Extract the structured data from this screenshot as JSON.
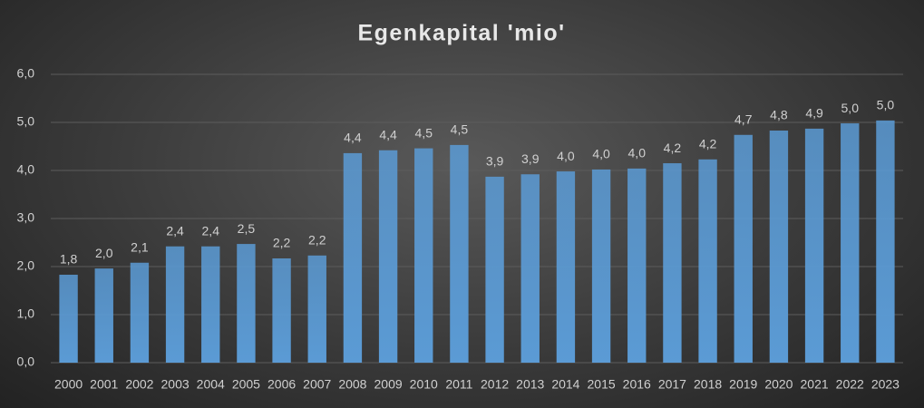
{
  "chart_data": {
    "type": "bar",
    "title": "Egenkapital 'mio'",
    "categories": [
      "2000",
      "2001",
      "2002",
      "2003",
      "2004",
      "2005",
      "2006",
      "2007",
      "2008",
      "2009",
      "2010",
      "2011",
      "2012",
      "2013",
      "2014",
      "2015",
      "2016",
      "2017",
      "2018",
      "2019",
      "2020",
      "2021",
      "2022",
      "2023"
    ],
    "values": [
      1.83,
      1.96,
      2.08,
      2.42,
      2.42,
      2.47,
      2.17,
      2.23,
      4.36,
      4.42,
      4.46,
      4.53,
      3.87,
      3.92,
      3.98,
      4.02,
      4.04,
      4.15,
      4.23,
      4.74,
      4.83,
      4.87,
      4.98,
      5.04
    ],
    "value_labels": [
      "1,8",
      "2,0",
      "2,1",
      "2,4",
      "2,4",
      "2,5",
      "2,2",
      "2,2",
      "4,4",
      "4,4",
      "4,5",
      "4,5",
      "3,9",
      "3,9",
      "4,0",
      "4,0",
      "4,0",
      "4,2",
      "4,2",
      "4,7",
      "4,8",
      "4,9",
      "5,0",
      "5,0"
    ],
    "color": "#5b9bd5",
    "ylim": [
      0,
      6
    ],
    "yticks": [
      {
        "value": 0,
        "label": "0,0"
      },
      {
        "value": 1,
        "label": "1,0"
      },
      {
        "value": 2,
        "label": "2,0"
      },
      {
        "value": 3,
        "label": "3,0"
      },
      {
        "value": 4,
        "label": "4,0"
      },
      {
        "value": 5,
        "label": "5,0"
      },
      {
        "value": 6,
        "label": "6,0"
      }
    ],
    "grid": true
  }
}
